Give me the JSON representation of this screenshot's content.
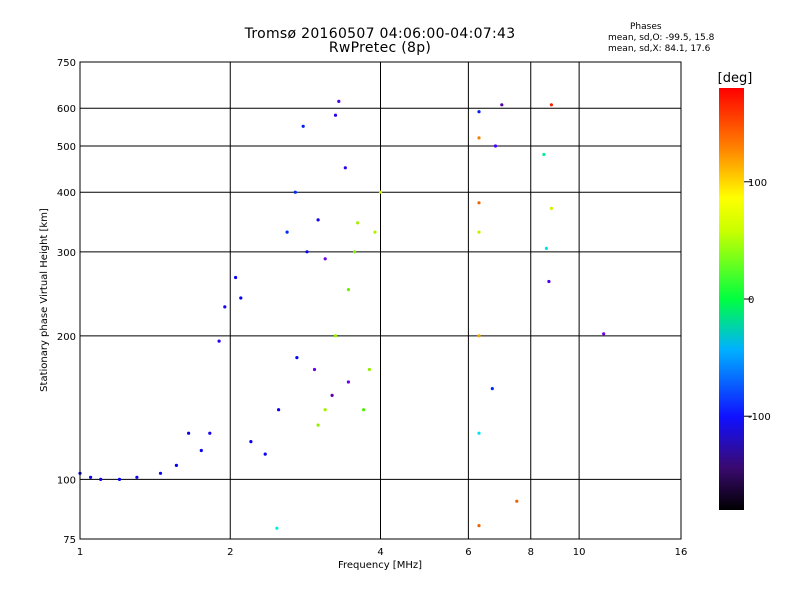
{
  "chart_data": {
    "type": "scatter",
    "title": "Tromsø 20160507 04:06:00-04:07:43",
    "subtitle": "RwPretec (8p)",
    "stats_heading": "Phases",
    "stats_lines": [
      "mean, sd,O: -99.5, 15.8",
      "mean, sd,X:  84.1, 17.6"
    ],
    "xlabel": "Frequency [MHz]",
    "ylabel": "Stationary phase Virtual Height [km]",
    "x_scale": "log",
    "y_scale": "log",
    "xlim": [
      1,
      16
    ],
    "ylim": [
      75,
      750
    ],
    "x_ticks": [
      1,
      2,
      4,
      6,
      8,
      10,
      16
    ],
    "x_tick_labels": [
      "1",
      "2",
      "4",
      "6",
      "8",
      "10",
      "16"
    ],
    "y_ticks": [
      75,
      100,
      200,
      300,
      400,
      500,
      600,
      750
    ],
    "y_tick_labels": [
      "75",
      "100",
      "200",
      "300",
      "400",
      "500",
      "600",
      "750"
    ],
    "grid": true,
    "colorbar": {
      "label": "[deg]",
      "range": [
        -180,
        180
      ],
      "ticks": [
        100,
        0,
        -100
      ],
      "tick_labels": [
        "100",
        "0",
        "-100"
      ]
    },
    "series": [
      {
        "values": [
          {
            "x": 1.0,
            "y": 103,
            "phase": -110
          },
          {
            "x": 1.05,
            "y": 101,
            "phase": -110
          },
          {
            "x": 1.1,
            "y": 100,
            "phase": -112
          },
          {
            "x": 1.2,
            "y": 100,
            "phase": -110
          },
          {
            "x": 1.3,
            "y": 101,
            "phase": -112
          },
          {
            "x": 1.45,
            "y": 103,
            "phase": -110
          },
          {
            "x": 1.56,
            "y": 107,
            "phase": -108
          },
          {
            "x": 1.65,
            "y": 125,
            "phase": -110
          },
          {
            "x": 1.75,
            "y": 115,
            "phase": -110
          },
          {
            "x": 1.82,
            "y": 125,
            "phase": -115
          },
          {
            "x": 1.9,
            "y": 195,
            "phase": -120
          },
          {
            "x": 1.95,
            "y": 230,
            "phase": -115
          },
          {
            "x": 2.05,
            "y": 265,
            "phase": -110
          },
          {
            "x": 2.1,
            "y": 240,
            "phase": -110
          },
          {
            "x": 2.2,
            "y": 120,
            "phase": -110
          },
          {
            "x": 2.35,
            "y": 113,
            "phase": -110
          },
          {
            "x": 2.5,
            "y": 140,
            "phase": -110
          },
          {
            "x": 2.6,
            "y": 330,
            "phase": -95
          },
          {
            "x": 2.7,
            "y": 400,
            "phase": -95
          },
          {
            "x": 2.72,
            "y": 180,
            "phase": -105
          },
          {
            "x": 2.8,
            "y": 550,
            "phase": -100
          },
          {
            "x": 2.85,
            "y": 300,
            "phase": -110
          },
          {
            "x": 2.95,
            "y": 170,
            "phase": -140
          },
          {
            "x": 3.0,
            "y": 350,
            "phase": -115
          },
          {
            "x": 3.1,
            "y": 290,
            "phase": -140
          },
          {
            "x": 3.2,
            "y": 150,
            "phase": -145
          },
          {
            "x": 3.25,
            "y": 580,
            "phase": -120
          },
          {
            "x": 3.3,
            "y": 620,
            "phase": -130
          },
          {
            "x": 3.4,
            "y": 450,
            "phase": -120
          },
          {
            "x": 3.45,
            "y": 160,
            "phase": -140
          }
        ]
      },
      {
        "values": [
          {
            "x": 3.0,
            "y": 130,
            "phase": 80
          },
          {
            "x": 3.1,
            "y": 140,
            "phase": 85
          },
          {
            "x": 3.25,
            "y": 200,
            "phase": 80
          },
          {
            "x": 3.45,
            "y": 250,
            "phase": 70
          },
          {
            "x": 3.55,
            "y": 300,
            "phase": 75
          },
          {
            "x": 3.6,
            "y": 345,
            "phase": 85
          },
          {
            "x": 3.7,
            "y": 140,
            "phase": 60
          },
          {
            "x": 3.8,
            "y": 170,
            "phase": 80
          },
          {
            "x": 3.9,
            "y": 330,
            "phase": 90
          },
          {
            "x": 4.0,
            "y": 400,
            "phase": 100
          }
        ]
      },
      {
        "values": [
          {
            "x": 2.48,
            "y": 79,
            "phase": -30
          },
          {
            "x": 6.3,
            "y": 80,
            "phase": 150
          },
          {
            "x": 6.3,
            "y": 125,
            "phase": -40
          },
          {
            "x": 6.3,
            "y": 200,
            "phase": 130
          },
          {
            "x": 6.3,
            "y": 330,
            "phase": 95
          },
          {
            "x": 6.3,
            "y": 380,
            "phase": 150
          },
          {
            "x": 6.3,
            "y": 520,
            "phase": 140
          },
          {
            "x": 6.3,
            "y": 590,
            "phase": -100
          },
          {
            "x": 6.7,
            "y": 155,
            "phase": -95
          },
          {
            "x": 6.8,
            "y": 500,
            "phase": -130
          },
          {
            "x": 7.0,
            "y": 610,
            "phase": -150
          },
          {
            "x": 7.5,
            "y": 90,
            "phase": 150
          },
          {
            "x": 8.5,
            "y": 480,
            "phase": -10
          },
          {
            "x": 8.6,
            "y": 305,
            "phase": -40
          },
          {
            "x": 8.7,
            "y": 260,
            "phase": -130
          },
          {
            "x": 8.8,
            "y": 610,
            "phase": 170
          },
          {
            "x": 8.8,
            "y": 370,
            "phase": 100
          },
          {
            "x": 11.2,
            "y": 202,
            "phase": -140
          }
        ]
      }
    ]
  }
}
